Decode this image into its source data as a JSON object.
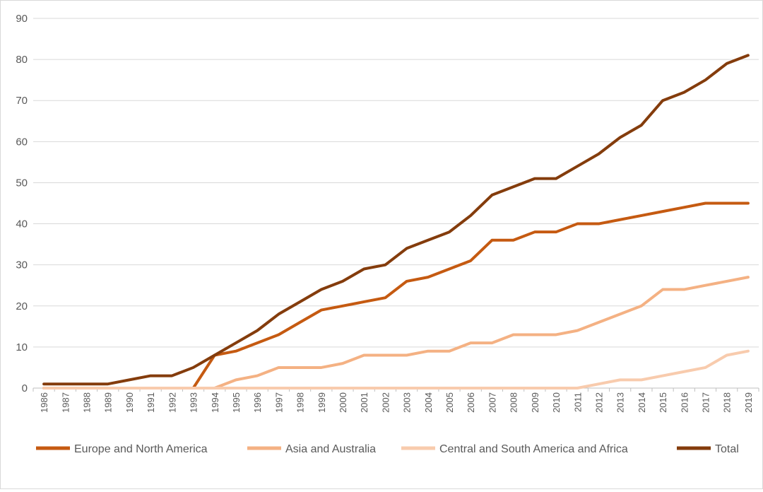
{
  "chart_data": {
    "type": "line",
    "title": "",
    "xlabel": "",
    "ylabel": "",
    "ylim": [
      0,
      90
    ],
    "y_ticks": [
      0,
      10,
      20,
      30,
      40,
      50,
      60,
      70,
      80,
      90
    ],
    "grid": true,
    "legend_position": "bottom",
    "x": [
      "1986",
      "1987",
      "1988",
      "1989",
      "1990",
      "1991",
      "1992",
      "1993",
      "1994",
      "1995",
      "1996",
      "1997",
      "1998",
      "1999",
      "2000",
      "2001",
      "2002",
      "2003",
      "2004",
      "2005",
      "2006",
      "2007",
      "2008",
      "2009",
      "2010",
      "2011",
      "2012",
      "2013",
      "2014",
      "2015",
      "2016",
      "2017",
      "2018",
      "2019"
    ],
    "series": [
      {
        "name": "Europe and North America",
        "color": "#c55a11",
        "values": [
          0,
          0,
          0,
          0,
          0,
          0,
          0,
          0,
          8,
          9,
          11,
          13,
          16,
          19,
          20,
          21,
          22,
          26,
          27,
          29,
          31,
          36,
          36,
          38,
          38,
          40,
          40,
          41,
          42,
          43,
          44,
          45,
          45,
          45
        ]
      },
      {
        "name": "Asia and Australia",
        "color": "#f4b183",
        "values": [
          0,
          0,
          0,
          0,
          0,
          0,
          0,
          0,
          0,
          2,
          3,
          5,
          5,
          5,
          6,
          8,
          8,
          8,
          9,
          9,
          11,
          11,
          13,
          13,
          13,
          14,
          16,
          18,
          20,
          24,
          24,
          25,
          26,
          27
        ]
      },
      {
        "name": "Central and South America and Africa",
        "color": "#f8cbad",
        "values": [
          0,
          0,
          0,
          0,
          0,
          0,
          0,
          0,
          0,
          0,
          0,
          0,
          0,
          0,
          0,
          0,
          0,
          0,
          0,
          0,
          0,
          0,
          0,
          0,
          0,
          0,
          1,
          2,
          2,
          3,
          4,
          5,
          8,
          9
        ]
      },
      {
        "name": "Total",
        "color": "#843c0c",
        "values": [
          1,
          1,
          1,
          1,
          2,
          3,
          3,
          5,
          8,
          11,
          14,
          18,
          21,
          24,
          26,
          29,
          30,
          34,
          36,
          38,
          42,
          47,
          49,
          51,
          51,
          54,
          57,
          61,
          64,
          70,
          72,
          75,
          79,
          81
        ]
      }
    ]
  }
}
